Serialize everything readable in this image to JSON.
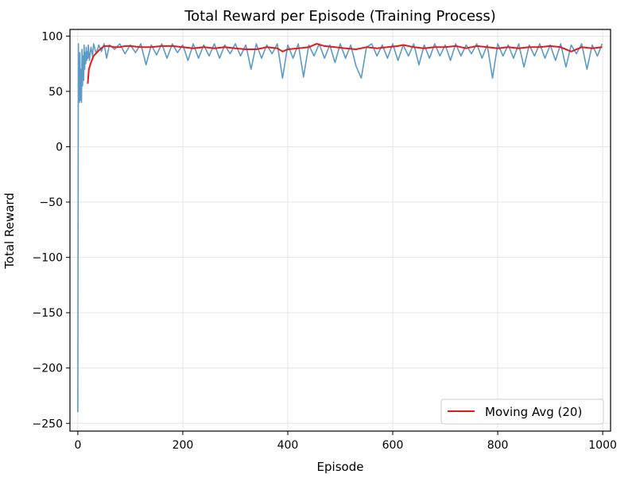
{
  "chart_data": {
    "type": "line",
    "title": "Total Reward per Episode (Training Process)",
    "xlabel": "Episode",
    "ylabel": "Total Reward",
    "xlim": [
      -15,
      1015
    ],
    "ylim": [
      -257,
      106
    ],
    "xticks": [
      0,
      200,
      400,
      600,
      800,
      1000
    ],
    "yticks": [
      100,
      50,
      0,
      -50,
      -100,
      -150,
      -200,
      -250
    ],
    "ytick_labels": [
      "100",
      "50",
      "0",
      "−50",
      "−100",
      "−150",
      "−200",
      "−250"
    ],
    "grid": true,
    "legend": {
      "position": "bottom-right",
      "entries": [
        "Moving Avg (20)"
      ]
    },
    "series": [
      {
        "key": "raw",
        "color": "#5b9bc6",
        "points": [
          [
            0,
            -240
          ],
          [
            1,
            93
          ],
          [
            2,
            50
          ],
          [
            3,
            40
          ],
          [
            4,
            85
          ],
          [
            5,
            42
          ],
          [
            6,
            70
          ],
          [
            7,
            40
          ],
          [
            8,
            88
          ],
          [
            9,
            55
          ],
          [
            10,
            82
          ],
          [
            11,
            60
          ],
          [
            12,
            92
          ],
          [
            13,
            70
          ],
          [
            14,
            85
          ],
          [
            15,
            75
          ],
          [
            16,
            90
          ],
          [
            17,
            78
          ],
          [
            18,
            86
          ],
          [
            19,
            80
          ],
          [
            20,
            92
          ],
          [
            22,
            78
          ],
          [
            25,
            90
          ],
          [
            28,
            82
          ],
          [
            30,
            93
          ],
          [
            35,
            84
          ],
          [
            40,
            92
          ],
          [
            45,
            86
          ],
          [
            50,
            93
          ],
          [
            55,
            80
          ],
          [
            60,
            92
          ],
          [
            70,
            88
          ],
          [
            80,
            93
          ],
          [
            90,
            84
          ],
          [
            100,
            92
          ],
          [
            110,
            85
          ],
          [
            120,
            93
          ],
          [
            130,
            74
          ],
          [
            140,
            92
          ],
          [
            150,
            83
          ],
          [
            160,
            93
          ],
          [
            170,
            80
          ],
          [
            180,
            93
          ],
          [
            190,
            85
          ],
          [
            200,
            92
          ],
          [
            210,
            78
          ],
          [
            220,
            93
          ],
          [
            230,
            80
          ],
          [
            240,
            92
          ],
          [
            250,
            82
          ],
          [
            260,
            93
          ],
          [
            270,
            80
          ],
          [
            280,
            92
          ],
          [
            290,
            84
          ],
          [
            300,
            93
          ],
          [
            310,
            82
          ],
          [
            320,
            92
          ],
          [
            330,
            70
          ],
          [
            340,
            93
          ],
          [
            350,
            80
          ],
          [
            360,
            92
          ],
          [
            370,
            84
          ],
          [
            380,
            93
          ],
          [
            390,
            62
          ],
          [
            400,
            92
          ],
          [
            410,
            80
          ],
          [
            420,
            93
          ],
          [
            430,
            63
          ],
          [
            440,
            92
          ],
          [
            450,
            82
          ],
          [
            460,
            93
          ],
          [
            470,
            80
          ],
          [
            480,
            92
          ],
          [
            490,
            76
          ],
          [
            500,
            93
          ],
          [
            510,
            80
          ],
          [
            520,
            92
          ],
          [
            530,
            73
          ],
          [
            540,
            62
          ],
          [
            550,
            90
          ],
          [
            560,
            93
          ],
          [
            570,
            82
          ],
          [
            580,
            92
          ],
          [
            590,
            80
          ],
          [
            600,
            93
          ],
          [
            610,
            78
          ],
          [
            620,
            92
          ],
          [
            630,
            82
          ],
          [
            640,
            93
          ],
          [
            650,
            74
          ],
          [
            660,
            92
          ],
          [
            670,
            80
          ],
          [
            680,
            93
          ],
          [
            690,
            82
          ],
          [
            700,
            92
          ],
          [
            710,
            78
          ],
          [
            720,
            93
          ],
          [
            730,
            82
          ],
          [
            740,
            92
          ],
          [
            750,
            84
          ],
          [
            760,
            93
          ],
          [
            770,
            80
          ],
          [
            780,
            92
          ],
          [
            790,
            62
          ],
          [
            800,
            93
          ],
          [
            810,
            82
          ],
          [
            820,
            92
          ],
          [
            830,
            80
          ],
          [
            840,
            93
          ],
          [
            850,
            72
          ],
          [
            860,
            92
          ],
          [
            870,
            82
          ],
          [
            880,
            93
          ],
          [
            890,
            80
          ],
          [
            900,
            92
          ],
          [
            910,
            78
          ],
          [
            920,
            93
          ],
          [
            930,
            72
          ],
          [
            940,
            92
          ],
          [
            950,
            84
          ],
          [
            960,
            93
          ],
          [
            970,
            70
          ],
          [
            980,
            92
          ],
          [
            990,
            82
          ],
          [
            999,
            93
          ]
        ]
      },
      {
        "key": "moving_avg",
        "name": "Moving Avg (20)",
        "color": "#e41a1c",
        "points": [
          [
            19,
            57
          ],
          [
            21,
            70
          ],
          [
            25,
            76
          ],
          [
            30,
            82
          ],
          [
            40,
            87
          ],
          [
            50,
            91
          ],
          [
            60,
            91
          ],
          [
            70,
            90
          ],
          [
            80,
            90
          ],
          [
            90,
            91
          ],
          [
            100,
            91
          ],
          [
            120,
            90
          ],
          [
            140,
            90
          ],
          [
            160,
            91
          ],
          [
            180,
            91
          ],
          [
            200,
            90
          ],
          [
            220,
            89
          ],
          [
            240,
            90
          ],
          [
            260,
            89
          ],
          [
            280,
            90
          ],
          [
            300,
            89
          ],
          [
            320,
            88
          ],
          [
            340,
            88
          ],
          [
            360,
            90
          ],
          [
            380,
            89
          ],
          [
            390,
            86
          ],
          [
            400,
            88
          ],
          [
            420,
            89
          ],
          [
            440,
            90
          ],
          [
            455,
            93
          ],
          [
            470,
            91
          ],
          [
            490,
            90
          ],
          [
            510,
            89
          ],
          [
            530,
            88
          ],
          [
            550,
            90
          ],
          [
            570,
            89
          ],
          [
            590,
            90
          ],
          [
            610,
            91
          ],
          [
            620,
            92
          ],
          [
            640,
            90
          ],
          [
            660,
            89
          ],
          [
            680,
            90
          ],
          [
            700,
            90
          ],
          [
            720,
            91
          ],
          [
            740,
            89
          ],
          [
            760,
            91
          ],
          [
            780,
            90
          ],
          [
            800,
            89
          ],
          [
            820,
            90
          ],
          [
            840,
            89
          ],
          [
            860,
            90
          ],
          [
            880,
            90
          ],
          [
            900,
            91
          ],
          [
            920,
            90
          ],
          [
            940,
            86
          ],
          [
            960,
            90
          ],
          [
            980,
            89
          ],
          [
            999,
            90
          ]
        ]
      }
    ]
  }
}
